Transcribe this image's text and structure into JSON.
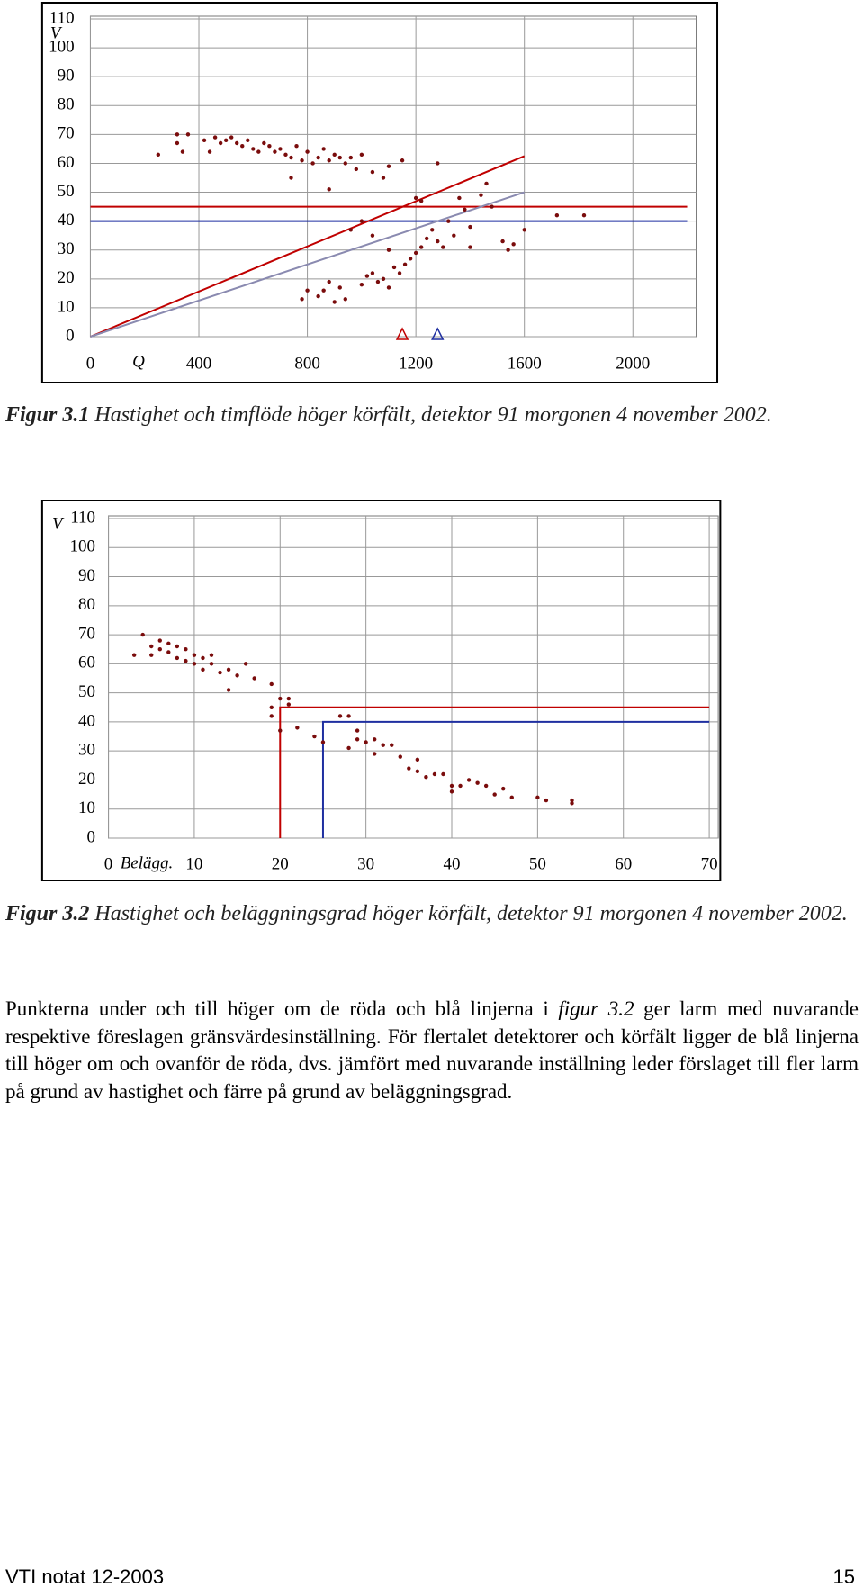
{
  "charts": [
    {
      "chart_data": {
        "type": "scatter",
        "y_label": "V",
        "x_label": "Q",
        "color": "#7a0c0c",
        "xlim": [
          0,
          2200
        ],
        "ylim": [
          0,
          110
        ],
        "xticks": [
          0,
          400,
          800,
          1200,
          1600,
          2000
        ],
        "yticks": [
          0,
          10,
          20,
          30,
          40,
          50,
          60,
          70,
          80,
          90,
          100,
          110
        ],
        "grid": true,
        "x": [
          250,
          320,
          320,
          340,
          360,
          420,
          440,
          460,
          480,
          500,
          520,
          540,
          560,
          580,
          600,
          620,
          640,
          660,
          680,
          700,
          720,
          740,
          760,
          780,
          800,
          820,
          840,
          860,
          880,
          900,
          920,
          940,
          960,
          980,
          1000,
          1040,
          1080,
          1100,
          1150,
          880,
          740,
          780,
          800,
          840,
          860,
          880,
          900,
          920,
          940,
          1000,
          1020,
          1040,
          1060,
          1080,
          1100,
          1120,
          1140,
          1160,
          1180,
          1200,
          1220,
          1240,
          1260,
          1280,
          1300,
          1320,
          1340,
          1360,
          1380,
          1400,
          1440,
          1460,
          1480,
          1520,
          1540,
          1560,
          1600,
          1720,
          1820,
          960,
          1000,
          1040,
          1100,
          1200,
          1220,
          1280,
          1400
        ],
        "values": [
          63,
          70,
          67,
          64,
          70,
          68,
          64,
          69,
          67,
          68,
          69,
          67,
          66,
          68,
          65,
          64,
          67,
          66,
          64,
          65,
          63,
          62,
          66,
          61,
          64,
          60,
          62,
          65,
          61,
          63,
          62,
          60,
          62,
          58,
          63,
          57,
          55,
          59,
          61,
          51,
          55,
          13,
          16,
          14,
          16,
          19,
          12,
          17,
          13,
          18,
          21,
          22,
          19,
          20,
          17,
          24,
          22,
          25,
          27,
          29,
          31,
          34,
          37,
          33,
          31,
          40,
          35,
          48,
          44,
          38,
          49,
          53,
          45,
          33,
          30,
          32,
          37,
          42,
          42,
          37,
          40,
          35,
          30,
          48,
          47,
          60,
          31
        ],
        "lines": [
          {
            "color": "#c00000",
            "x": [
              0,
              2200
            ],
            "y": [
              45,
              45
            ]
          },
          {
            "color": "#1f2fa0",
            "x": [
              0,
              2200
            ],
            "y": [
              40,
              40
            ]
          },
          {
            "color": "#c00000",
            "x": [
              0,
              1600
            ],
            "y": [
              0,
              62.5
            ]
          },
          {
            "color": "#8a8ab0",
            "x": [
              0,
              1600
            ],
            "y": [
              0,
              50
            ]
          }
        ],
        "markers": [
          {
            "color": "#c00000",
            "x": 1150,
            "y": 0
          },
          {
            "color": "#1f2fa0",
            "x": 1280,
            "y": 0
          }
        ]
      }
    },
    {
      "chart_data": {
        "type": "scatter",
        "y_label": "V",
        "x_label": "Belägg.",
        "color": "#7a0c0c",
        "xlim": [
          0,
          70
        ],
        "ylim": [
          0,
          110
        ],
        "xticks": [
          0,
          10,
          20,
          30,
          40,
          50,
          60,
          70
        ],
        "yticks": [
          0,
          10,
          20,
          30,
          40,
          50,
          60,
          70,
          80,
          90,
          100,
          110
        ],
        "grid": true,
        "x": [
          3,
          4,
          5,
          5,
          6,
          6,
          7,
          7,
          8,
          8,
          9,
          9,
          10,
          10,
          11,
          11,
          12,
          12,
          13,
          14,
          14,
          15,
          16,
          17,
          19,
          19,
          19,
          20,
          20,
          21,
          21,
          22,
          24,
          25,
          27,
          28,
          28,
          29,
          29,
          30,
          31,
          31,
          32,
          33,
          34,
          35,
          36,
          36,
          37,
          38,
          39,
          40,
          40,
          41,
          42,
          43,
          44,
          45,
          46,
          47,
          50,
          51,
          54,
          54
        ],
        "values": [
          63,
          70,
          66,
          63,
          68,
          65,
          67,
          64,
          66,
          62,
          65,
          61,
          63,
          60,
          62,
          58,
          63,
          60,
          57,
          51,
          58,
          56,
          60,
          55,
          53,
          45,
          42,
          48,
          37,
          46,
          48,
          38,
          35,
          33,
          42,
          42,
          31,
          37,
          34,
          33,
          29,
          34,
          32,
          32,
          28,
          24,
          23,
          27,
          21,
          22,
          22,
          16,
          18,
          18,
          20,
          19,
          18,
          15,
          17,
          14,
          14,
          13,
          13,
          12
        ],
        "lines": [
          {
            "color": "#c00000",
            "x": [
              20,
              20,
              70
            ],
            "y": [
              0,
              45,
              45
            ]
          },
          {
            "color": "#1f2fa0",
            "x": [
              25,
              25,
              70
            ],
            "y": [
              0,
              40,
              40
            ]
          }
        ]
      }
    }
  ],
  "captions": [
    {
      "label": "Figur 3.1",
      "text": "Hastighet och timflöde höger körfält, detektor 91 morgonen 4 november 2002."
    },
    {
      "label": "Figur 3.2",
      "text": "Hastighet och beläggningsgrad höger körfält, detektor 91 morgonen 4 november 2002."
    }
  ],
  "paragraph": {
    "before": "Punkterna under och till höger om de röda och blå linjerna i ",
    "ref": "figur 3.2",
    "after": " ger larm med nuvarande respektive föreslagen gränsvärdesinställning. För flertalet detektorer och körfält ligger de blå linjerna till höger om och ovanför de röda, dvs. jämfört med nuvarande inställning leder förslaget till fler larm på grund av hastighet och färre på grund av beläggningsgrad."
  },
  "footer": {
    "left": "VTI notat 12-2003",
    "right": "15"
  }
}
